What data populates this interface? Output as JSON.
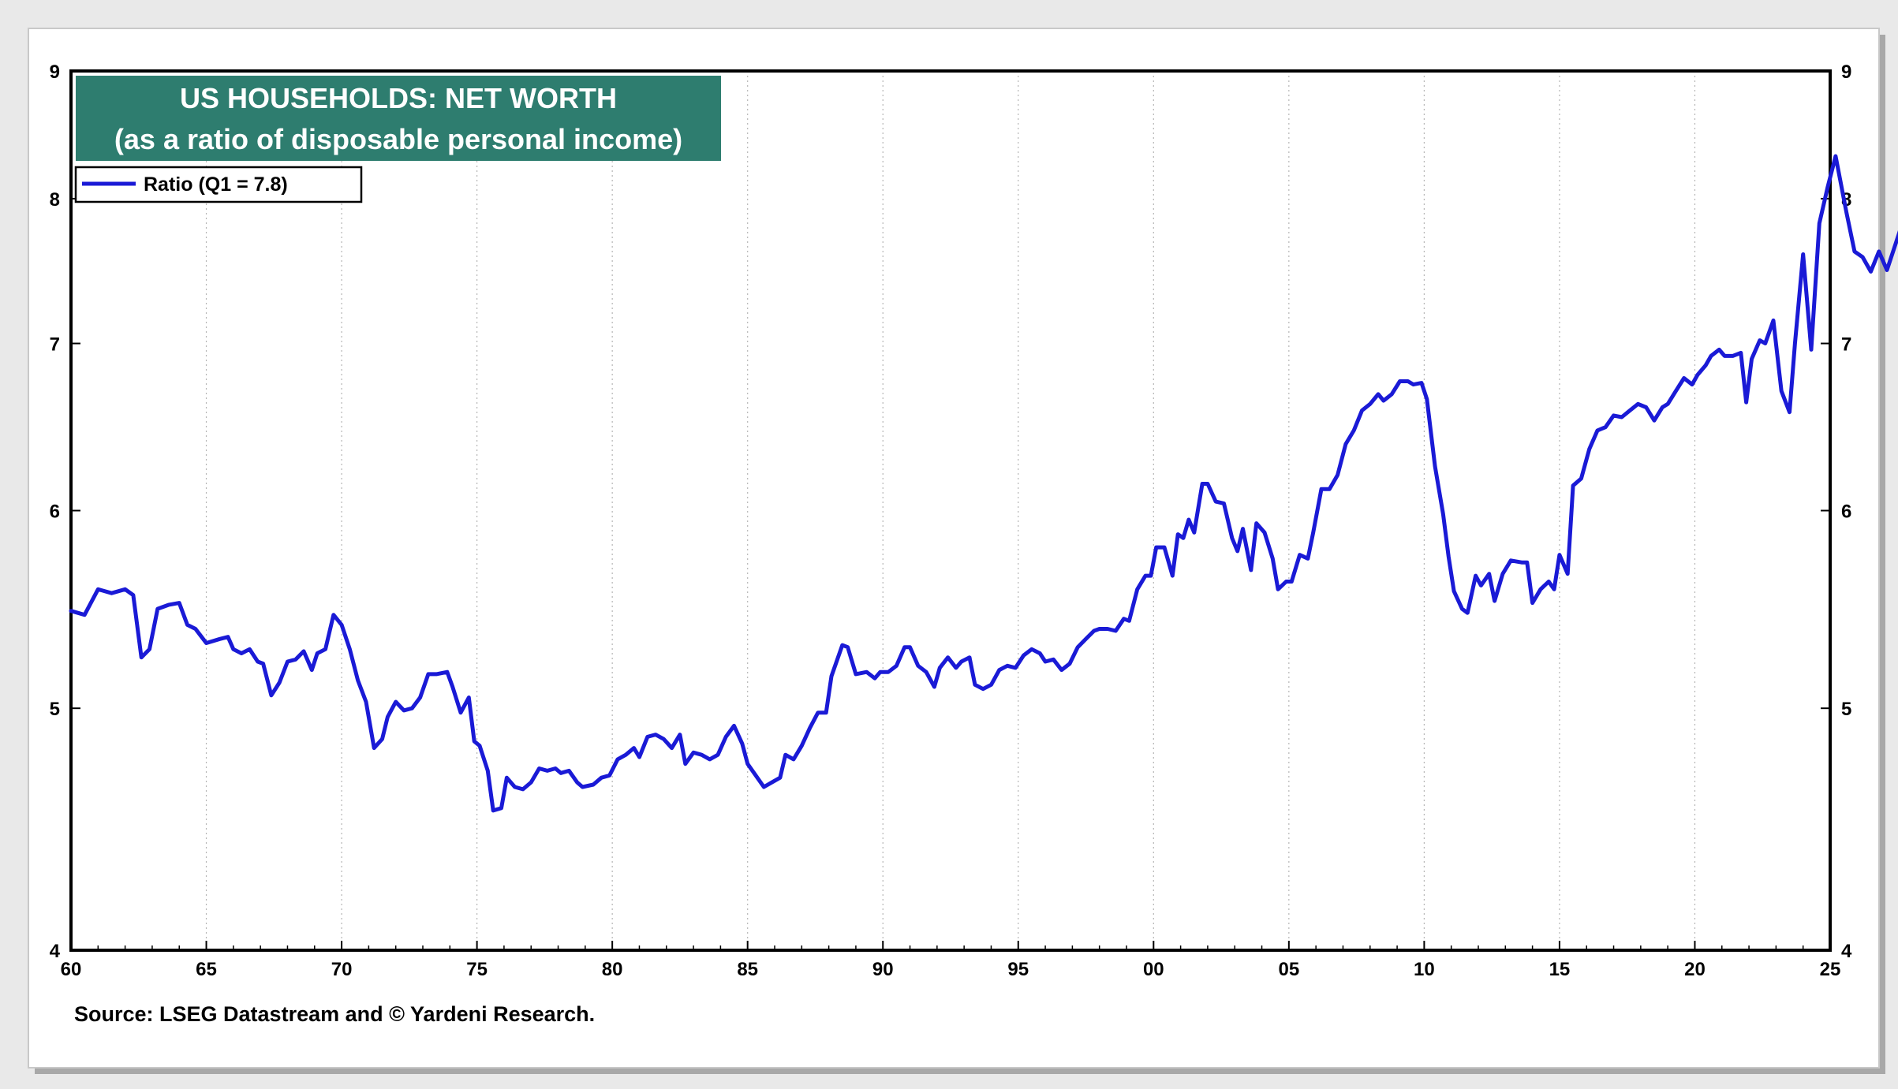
{
  "chart_data": {
    "type": "line",
    "title": "US HOUSEHOLDS: NET WORTH",
    "subtitle": "(as a ratio of disposable personal income)",
    "source": "Source: LSEG Datastream and © Yardeni Research.",
    "legend": {
      "placement": "top-left",
      "label": "Ratio  (Q1 = 7.8)"
    },
    "x_axis": {
      "range": [
        1960,
        2025
      ],
      "ticks": [
        1960,
        1965,
        1970,
        1975,
        1980,
        1985,
        1990,
        1995,
        2000,
        2005,
        2010,
        2015,
        2020,
        2025
      ],
      "tick_labels": [
        "60",
        "65",
        "70",
        "75",
        "80",
        "85",
        "90",
        "95",
        "00",
        "05",
        "10",
        "15",
        "20",
        "25"
      ]
    },
    "y_axis": {
      "scale": "log",
      "range": [
        4,
        9
      ],
      "ticks": [
        4,
        5,
        6,
        7,
        8,
        9
      ],
      "tick_labels": [
        "4",
        "5",
        "6",
        "7",
        "8",
        "9"
      ],
      "both_sides": true
    },
    "grid": "vertical-dotted",
    "colors": {
      "line": "#1a1ad6",
      "title_box": "#2e7d6f",
      "frame": "#000000"
    },
    "series": [
      {
        "name": "Ratio",
        "points": [
          [
            1960.0,
            5.47
          ],
          [
            1960.5,
            5.45
          ],
          [
            1961.0,
            5.58
          ],
          [
            1961.5,
            5.56
          ],
          [
            1962.0,
            5.58
          ],
          [
            1962.3,
            5.55
          ],
          [
            1962.6,
            5.24
          ],
          [
            1962.9,
            5.28
          ],
          [
            1963.2,
            5.48
          ],
          [
            1963.6,
            5.5
          ],
          [
            1964.0,
            5.51
          ],
          [
            1964.3,
            5.4
          ],
          [
            1964.6,
            5.38
          ],
          [
            1965.0,
            5.31
          ],
          [
            1965.5,
            5.33
          ],
          [
            1965.8,
            5.34
          ],
          [
            1966.0,
            5.28
          ],
          [
            1966.3,
            5.26
          ],
          [
            1966.6,
            5.28
          ],
          [
            1966.9,
            5.22
          ],
          [
            1967.1,
            5.21
          ],
          [
            1967.4,
            5.06
          ],
          [
            1967.7,
            5.12
          ],
          [
            1968.0,
            5.22
          ],
          [
            1968.3,
            5.23
          ],
          [
            1968.6,
            5.27
          ],
          [
            1968.9,
            5.18
          ],
          [
            1969.1,
            5.26
          ],
          [
            1969.4,
            5.28
          ],
          [
            1969.7,
            5.45
          ],
          [
            1970.0,
            5.4
          ],
          [
            1970.3,
            5.28
          ],
          [
            1970.6,
            5.13
          ],
          [
            1970.9,
            5.03
          ],
          [
            1971.2,
            4.82
          ],
          [
            1971.5,
            4.86
          ],
          [
            1971.7,
            4.96
          ],
          [
            1972.0,
            5.03
          ],
          [
            1972.3,
            4.99
          ],
          [
            1972.6,
            5.0
          ],
          [
            1972.9,
            5.05
          ],
          [
            1973.2,
            5.16
          ],
          [
            1973.5,
            5.16
          ],
          [
            1973.9,
            5.17
          ],
          [
            1974.1,
            5.1
          ],
          [
            1974.4,
            4.98
          ],
          [
            1974.7,
            5.05
          ],
          [
            1974.9,
            4.85
          ],
          [
            1975.1,
            4.83
          ],
          [
            1975.4,
            4.72
          ],
          [
            1975.6,
            4.55
          ],
          [
            1975.9,
            4.56
          ],
          [
            1976.1,
            4.69
          ],
          [
            1976.4,
            4.65
          ],
          [
            1976.7,
            4.64
          ],
          [
            1977.0,
            4.67
          ],
          [
            1977.3,
            4.73
          ],
          [
            1977.6,
            4.72
          ],
          [
            1977.9,
            4.73
          ],
          [
            1978.1,
            4.71
          ],
          [
            1978.4,
            4.72
          ],
          [
            1978.7,
            4.67
          ],
          [
            1978.9,
            4.65
          ],
          [
            1979.3,
            4.66
          ],
          [
            1979.6,
            4.69
          ],
          [
            1979.9,
            4.7
          ],
          [
            1980.2,
            4.77
          ],
          [
            1980.5,
            4.79
          ],
          [
            1980.8,
            4.82
          ],
          [
            1981.0,
            4.78
          ],
          [
            1981.3,
            4.87
          ],
          [
            1981.6,
            4.88
          ],
          [
            1981.9,
            4.86
          ],
          [
            1982.2,
            4.82
          ],
          [
            1982.5,
            4.88
          ],
          [
            1982.7,
            4.75
          ],
          [
            1983.0,
            4.8
          ],
          [
            1983.3,
            4.79
          ],
          [
            1983.6,
            4.77
          ],
          [
            1983.9,
            4.79
          ],
          [
            1984.2,
            4.87
          ],
          [
            1984.5,
            4.92
          ],
          [
            1984.8,
            4.84
          ],
          [
            1985.0,
            4.75
          ],
          [
            1985.3,
            4.7
          ],
          [
            1985.6,
            4.65
          ],
          [
            1985.9,
            4.67
          ],
          [
            1986.2,
            4.69
          ],
          [
            1986.4,
            4.79
          ],
          [
            1986.7,
            4.77
          ],
          [
            1987.0,
            4.83
          ],
          [
            1987.3,
            4.91
          ],
          [
            1987.6,
            4.98
          ],
          [
            1987.9,
            4.98
          ],
          [
            1988.1,
            5.15
          ],
          [
            1988.5,
            5.3
          ],
          [
            1988.7,
            5.29
          ],
          [
            1989.0,
            5.16
          ],
          [
            1989.4,
            5.17
          ],
          [
            1989.7,
            5.14
          ],
          [
            1989.9,
            5.17
          ],
          [
            1990.2,
            5.17
          ],
          [
            1990.5,
            5.2
          ],
          [
            1990.8,
            5.29
          ],
          [
            1991.0,
            5.29
          ],
          [
            1991.3,
            5.2
          ],
          [
            1991.6,
            5.17
          ],
          [
            1991.9,
            5.1
          ],
          [
            1992.1,
            5.19
          ],
          [
            1992.4,
            5.24
          ],
          [
            1992.7,
            5.19
          ],
          [
            1992.9,
            5.22
          ],
          [
            1993.2,
            5.24
          ],
          [
            1993.4,
            5.11
          ],
          [
            1993.7,
            5.09
          ],
          [
            1994.0,
            5.11
          ],
          [
            1994.3,
            5.18
          ],
          [
            1994.6,
            5.2
          ],
          [
            1994.9,
            5.19
          ],
          [
            1995.2,
            5.25
          ],
          [
            1995.5,
            5.28
          ],
          [
            1995.8,
            5.26
          ],
          [
            1996.0,
            5.22
          ],
          [
            1996.3,
            5.23
          ],
          [
            1996.6,
            5.18
          ],
          [
            1996.9,
            5.21
          ],
          [
            1997.2,
            5.29
          ],
          [
            1997.5,
            5.33
          ],
          [
            1997.8,
            5.37
          ],
          [
            1998.0,
            5.38
          ],
          [
            1998.3,
            5.38
          ],
          [
            1998.6,
            5.37
          ],
          [
            1998.9,
            5.43
          ],
          [
            1999.1,
            5.42
          ],
          [
            1999.4,
            5.58
          ],
          [
            1999.7,
            5.65
          ],
          [
            1999.9,
            5.65
          ],
          [
            2000.1,
            5.8
          ],
          [
            2000.4,
            5.8
          ],
          [
            2000.7,
            5.65
          ],
          [
            2000.9,
            5.87
          ],
          [
            2001.1,
            5.85
          ],
          [
            2001.3,
            5.95
          ],
          [
            2001.5,
            5.88
          ],
          [
            2001.8,
            6.15
          ],
          [
            2002.0,
            6.15
          ],
          [
            2002.3,
            6.05
          ],
          [
            2002.6,
            6.04
          ],
          [
            2002.9,
            5.85
          ],
          [
            2003.1,
            5.78
          ],
          [
            2003.3,
            5.9
          ],
          [
            2003.6,
            5.68
          ],
          [
            2003.8,
            5.93
          ],
          [
            2004.1,
            5.88
          ],
          [
            2004.4,
            5.74
          ],
          [
            2004.6,
            5.58
          ],
          [
            2004.9,
            5.62
          ],
          [
            2005.1,
            5.62
          ],
          [
            2005.4,
            5.76
          ],
          [
            2005.7,
            5.74
          ],
          [
            2005.9,
            5.88
          ],
          [
            2006.2,
            6.12
          ],
          [
            2006.5,
            6.12
          ],
          [
            2006.8,
            6.2
          ],
          [
            2007.1,
            6.38
          ],
          [
            2007.4,
            6.46
          ],
          [
            2007.7,
            6.58
          ],
          [
            2008.0,
            6.62
          ],
          [
            2008.3,
            6.68
          ],
          [
            2008.5,
            6.64
          ],
          [
            2008.8,
            6.68
          ],
          [
            2009.1,
            6.76
          ],
          [
            2009.4,
            6.76
          ],
          [
            2009.6,
            6.74
          ],
          [
            2009.9,
            6.75
          ],
          [
            2010.1,
            6.65
          ],
          [
            2010.4,
            6.25
          ],
          [
            2010.7,
            5.98
          ],
          [
            2010.9,
            5.75
          ],
          [
            2011.1,
            5.57
          ],
          [
            2011.4,
            5.48
          ],
          [
            2011.6,
            5.46
          ],
          [
            2011.9,
            5.65
          ],
          [
            2012.1,
            5.6
          ],
          [
            2012.4,
            5.66
          ],
          [
            2012.6,
            5.52
          ],
          [
            2012.9,
            5.66
          ],
          [
            2013.2,
            5.73
          ],
          [
            2013.6,
            5.72
          ],
          [
            2013.8,
            5.72
          ],
          [
            2014.0,
            5.51
          ],
          [
            2014.3,
            5.58
          ],
          [
            2014.6,
            5.62
          ],
          [
            2014.8,
            5.58
          ],
          [
            2015.0,
            5.76
          ],
          [
            2015.3,
            5.66
          ],
          [
            2015.5,
            6.14
          ],
          [
            2015.8,
            6.18
          ],
          [
            2016.1,
            6.35
          ],
          [
            2016.4,
            6.46
          ],
          [
            2016.7,
            6.48
          ],
          [
            2017.0,
            6.55
          ],
          [
            2017.3,
            6.54
          ],
          [
            2017.6,
            6.58
          ],
          [
            2017.9,
            6.62
          ],
          [
            2018.2,
            6.6
          ],
          [
            2018.5,
            6.52
          ],
          [
            2018.8,
            6.6
          ],
          [
            2019.0,
            6.62
          ],
          [
            2019.3,
            6.7
          ],
          [
            2019.6,
            6.78
          ],
          [
            2019.9,
            6.74
          ],
          [
            2020.1,
            6.8
          ],
          [
            2020.4,
            6.86
          ],
          [
            2020.6,
            6.92
          ],
          [
            2020.9,
            6.96
          ],
          [
            2021.1,
            6.92
          ],
          [
            2021.4,
            6.92
          ],
          [
            2021.7,
            6.94
          ],
          [
            2021.9,
            6.63
          ],
          [
            2022.1,
            6.9
          ],
          [
            2022.4,
            7.02
          ],
          [
            2022.6,
            7.0
          ],
          [
            2022.9,
            7.15
          ],
          [
            2023.2,
            6.7
          ],
          [
            2023.5,
            6.57
          ],
          [
            2023.7,
            7.0
          ],
          [
            2024.0,
            7.6
          ],
          [
            2024.3,
            6.96
          ],
          [
            2024.6,
            7.82
          ],
          [
            2024.9,
            8.08
          ],
          [
            2025.2,
            8.32
          ],
          [
            2025.6,
            7.9
          ],
          [
            2025.9,
            7.62
          ],
          [
            2026.2,
            7.58
          ],
          [
            2026.5,
            7.48
          ],
          [
            2026.8,
            7.62
          ],
          [
            2027.1,
            7.49
          ],
          [
            2027.6,
            7.78
          ]
        ]
      }
    ]
  }
}
